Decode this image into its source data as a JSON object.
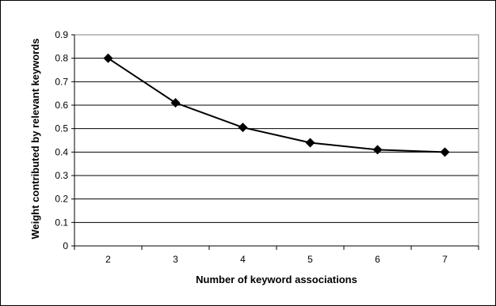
{
  "chart_data": {
    "type": "line",
    "x": [
      2,
      3,
      4,
      5,
      6,
      7
    ],
    "series": [
      {
        "values": [
          0.8,
          0.61,
          0.505,
          0.44,
          0.41,
          0.4
        ]
      }
    ],
    "title": "",
    "xlabel": "Number of keyword associations",
    "ylabel": "Weight contributed by relevant keywords",
    "ylim": [
      0,
      0.9
    ],
    "yticks": [
      "0",
      "0.1",
      "0.2",
      "0.3",
      "0.4",
      "0.5",
      "0.6",
      "0.7",
      "0.8",
      "0.9"
    ],
    "xticks": [
      "2",
      "3",
      "4",
      "5",
      "6",
      "7"
    ],
    "grid": "horizontal",
    "legend": "none",
    "colors": {
      "line": "#000000",
      "marker": "#000000",
      "grid": "#000000",
      "plot_border": "#808080"
    }
  }
}
